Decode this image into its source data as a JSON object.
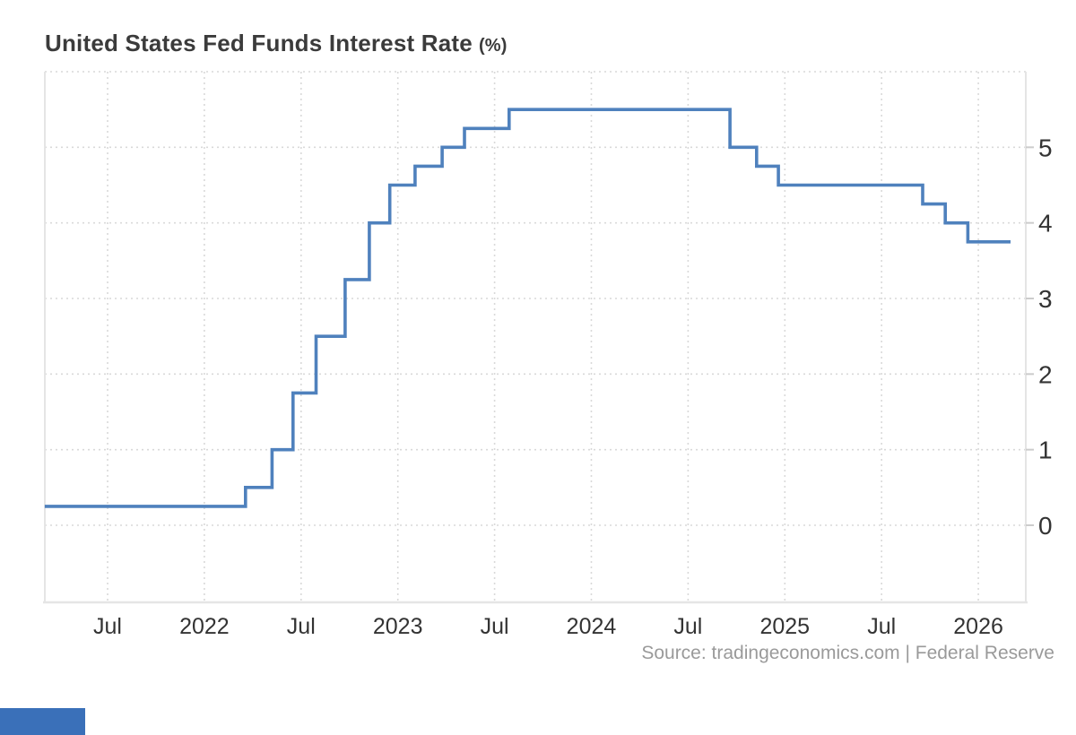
{
  "header": {
    "title": "United States Fed Funds Interest Rate",
    "unit": "(%)"
  },
  "footer": {
    "source": "Source: tradingeconomics.com | Federal Reserve"
  },
  "colors": {
    "line": "#4f81bd",
    "grid": "#d9d9d9",
    "axis": "#e5e5e5",
    "tick": "#cccccc",
    "axis_label": "#333333",
    "title": "#3b3b3b",
    "source": "#9a9a9a",
    "accent_bar": "#3a70b9",
    "background": "#ffffff"
  },
  "chart_data": {
    "type": "line",
    "step": true,
    "title": "United States Fed Funds Interest Rate (%)",
    "xlabel": "",
    "ylabel": "",
    "legend": "none",
    "grid": "dotted",
    "ylim": [
      -1,
      6.05
    ],
    "y_ticks": [
      0,
      1,
      2,
      3,
      4,
      5
    ],
    "y_grid_values": [
      0,
      1,
      2,
      3,
      4,
      5,
      6
    ],
    "x_ticks": [
      {
        "label": "Jul",
        "m": 6
      },
      {
        "label": "2022",
        "m": 12
      },
      {
        "label": "Jul",
        "m": 18
      },
      {
        "label": "2023",
        "m": 24
      },
      {
        "label": "Jul",
        "m": 30
      },
      {
        "label": "2024",
        "m": 36
      },
      {
        "label": "Jul",
        "m": 42
      },
      {
        "label": "2025",
        "m": 48
      },
      {
        "label": "Jul",
        "m": 54
      },
      {
        "label": "2026",
        "m": 60
      }
    ],
    "end_m": 62,
    "series": [
      {
        "name": "Fed Funds Interest Rate",
        "points": [
          {
            "date": "2021-03",
            "value": 0.25,
            "m": 2.1
          },
          {
            "date": "2022-03",
            "value": 0.5,
            "m": 14.55
          },
          {
            "date": "2022-05",
            "value": 1.0,
            "m": 16.2
          },
          {
            "date": "2022-06",
            "value": 1.75,
            "m": 17.5
          },
          {
            "date": "2022-07",
            "value": 2.5,
            "m": 18.93
          },
          {
            "date": "2022-09",
            "value": 3.25,
            "m": 20.73
          },
          {
            "date": "2022-11",
            "value": 4.0,
            "m": 22.23
          },
          {
            "date": "2022-12",
            "value": 4.5,
            "m": 23.5
          },
          {
            "date": "2023-02",
            "value": 4.75,
            "m": 25.07
          },
          {
            "date": "2023-03",
            "value": 5.0,
            "m": 26.75
          },
          {
            "date": "2023-05",
            "value": 5.25,
            "m": 28.13
          },
          {
            "date": "2023-07",
            "value": 5.5,
            "m": 30.9
          },
          {
            "date": "2024-09",
            "value": 5.0,
            "m": 44.6
          },
          {
            "date": "2024-11",
            "value": 4.75,
            "m": 46.25
          },
          {
            "date": "2024-12",
            "value": 4.5,
            "m": 47.6
          },
          {
            "date": "2025-09",
            "value": 4.25,
            "m": 56.55
          },
          {
            "date": "2025-10",
            "value": 4.0,
            "m": 57.95
          },
          {
            "date": "2025-12",
            "value": 3.75,
            "m": 59.35
          }
        ]
      }
    ]
  }
}
